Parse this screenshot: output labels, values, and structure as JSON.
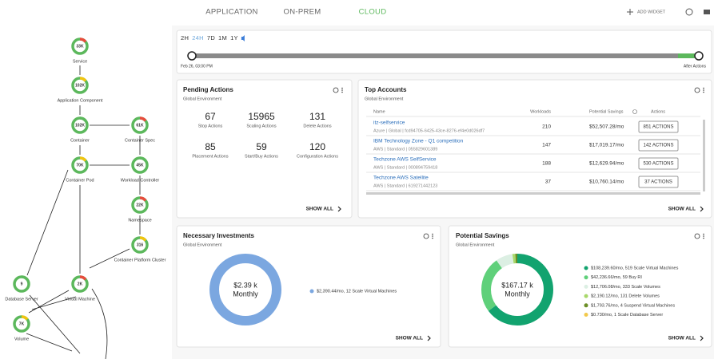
{
  "nav": {
    "tabs": [
      "APPLICATION",
      "ON-PREM",
      "CLOUD"
    ],
    "active_tab": 2,
    "add_widget": "ADD WIDGET"
  },
  "supply_chain": {
    "nodes": [
      {
        "label": "Service",
        "count": "33K"
      },
      {
        "label": "Application Component",
        "count": "102K"
      },
      {
        "label": "Container",
        "count": "102K"
      },
      {
        "label": "Container Spec",
        "count": "61K"
      },
      {
        "label": "Container Pod",
        "count": "70K"
      },
      {
        "label": "Workload Controller",
        "count": "45K"
      },
      {
        "label": "Namespace",
        "count": "22K"
      },
      {
        "label": "Container Platform Cluster",
        "count": "316"
      },
      {
        "label": "Database Server",
        "count": "9"
      },
      {
        "label": "Virtual Machine",
        "count": "2K"
      },
      {
        "label": "Volume",
        "count": "7K"
      }
    ]
  },
  "timeline": {
    "ranges": [
      "2H",
      "24H",
      "7D",
      "1M",
      "1Y"
    ],
    "selected_range": 1,
    "start": "Feb 26, 03:00 PM",
    "end": "After Actions"
  },
  "pending_actions": {
    "title": "Pending Actions",
    "subtitle": "Global Environment",
    "items": [
      {
        "count": "67",
        "label": "Stop Actions"
      },
      {
        "count": "15965",
        "label": "Scaling Actions"
      },
      {
        "count": "131",
        "label": "Delete Actions"
      },
      {
        "count": "85",
        "label": "Placement Actions"
      },
      {
        "count": "59",
        "label": "Start/Buy Actions"
      },
      {
        "count": "120",
        "label": "Configuration Actions"
      }
    ],
    "show_all": "SHOW ALL"
  },
  "top_accounts": {
    "title": "Top Accounts",
    "subtitle": "Global Environment",
    "columns": [
      "Name",
      "Workloads",
      "Potential Savings",
      "Actions"
    ],
    "rows": [
      {
        "name": "itz-selfservice",
        "detail": "Azure | Global | fcd94705-6425-43ce-8276-ef4e0d026df7",
        "workloads": "210",
        "savings": "$52,507.28/mo",
        "actions": "851 ACTIONS"
      },
      {
        "name": "IBM Technology Zone - Q1 competition",
        "detail": "AWS | Standard | 055829601389",
        "workloads": "147",
        "savings": "$17,019.17/mo",
        "actions": "142 ACTIONS"
      },
      {
        "name": "Techzone AWS SelfService",
        "detail": "AWS | Standard | 000894759418",
        "workloads": "188",
        "savings": "$12,629.94/mo",
        "actions": "530 ACTIONS"
      },
      {
        "name": "Techzone AWS Satellite",
        "detail": "AWS | Standard | 619271442123",
        "workloads": "37",
        "savings": "$10,760.14/mo",
        "actions": "37 ACTIONS"
      }
    ],
    "show_all": "SHOW ALL"
  },
  "necessary_investments": {
    "title": "Necessary Investments",
    "subtitle": "Global Environment",
    "center": "$2.39 k",
    "center_sub": "Monthly",
    "legend": [
      {
        "label": "$2,390.44/mo, 12 Scale Virtual Machines",
        "value": 2390.44,
        "color": "#7ba7e0"
      }
    ],
    "show_all": "SHOW ALL"
  },
  "potential_savings": {
    "title": "Potential Savings",
    "subtitle": "Global Environment",
    "center": "$167.17 k",
    "center_sub": "Monthly",
    "legend": [
      {
        "label": "$108,239.60/mo, 519 Scale Virtual Machines",
        "value": 108239.6,
        "color": "#12a36f"
      },
      {
        "label": "$42,236.66/mo, 59 Buy RI",
        "value": 42236.66,
        "color": "#5fd07a"
      },
      {
        "label": "$12,706.08/mo, 333 Scale Volumes",
        "value": 12706.08,
        "color": "#dcefe3"
      },
      {
        "label": "$2,190.12/mo, 131 Delete Volumes",
        "value": 2190.12,
        "color": "#a8d86a"
      },
      {
        "label": "$1,793.76/mo, 4 Suspend Virtual Machines",
        "value": 1793.76,
        "color": "#6c8f26"
      },
      {
        "label": "$0.730/mo, 1 Scale Database Server",
        "value": 0.73,
        "color": "#f2c94c"
      }
    ],
    "show_all": "SHOW ALL"
  }
}
